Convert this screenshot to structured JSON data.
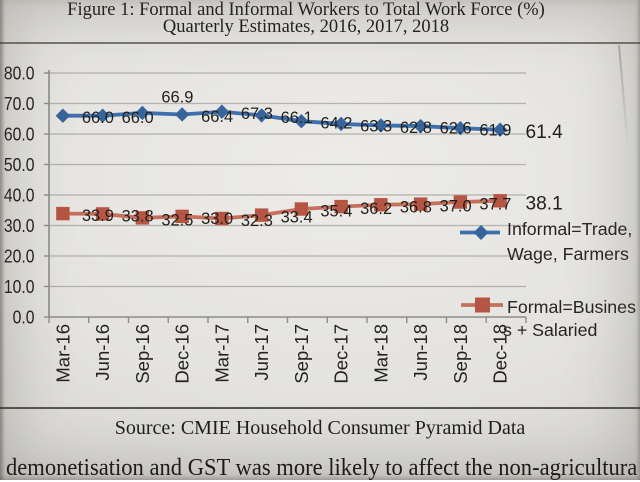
{
  "figure": {
    "title_line1": "Figure 1: Formal and Informal Workers to Total Work Force (%)",
    "title_line2": "Quarterly Estimates, 2016, 2017, 2018",
    "source": "Source: CMIE Household Consumer Pyramid Data"
  },
  "body_text": "demonetisation and GST was more likely to affect the non-agricultura",
  "chart_data": {
    "type": "line",
    "categories": [
      "Mar-16",
      "Jun-16",
      "Sep-16",
      "Dec-16",
      "Mar-17",
      "Jun-17",
      "Sep-17",
      "Dec-17",
      "Mar-18",
      "Jun-18",
      "Sep-18",
      "Dec-18"
    ],
    "series": [
      {
        "name": "Informal=Trade, Wage, Farmers",
        "marker": "diamond",
        "line_color": "#3c6fae",
        "marker_color": "#35639b",
        "values": [
          66.0,
          66.0,
          66.9,
          66.4,
          67.3,
          66.1,
          64.2,
          63.3,
          62.8,
          62.6,
          61.9,
          61.4
        ],
        "label_above": [
          2
        ]
      },
      {
        "name": "Formal=Business + Salaried",
        "marker": "square",
        "line_color": "#c66f5b",
        "marker_color": "#b55442",
        "values": [
          33.9,
          33.8,
          32.5,
          33.0,
          32.3,
          33.4,
          35.4,
          36.2,
          36.8,
          37.0,
          37.7,
          38.1
        ],
        "label_above": []
      }
    ],
    "ylim": [
      0,
      80
    ],
    "ytick_step": 10,
    "grid": true,
    "legend_position": "right",
    "legend": {
      "series1_line1": "Informal=Trade,",
      "series1_line2": "Wage, Farmers",
      "series2_line1": "Formal=Busines",
      "series2_line2": "s + Salaried"
    }
  }
}
